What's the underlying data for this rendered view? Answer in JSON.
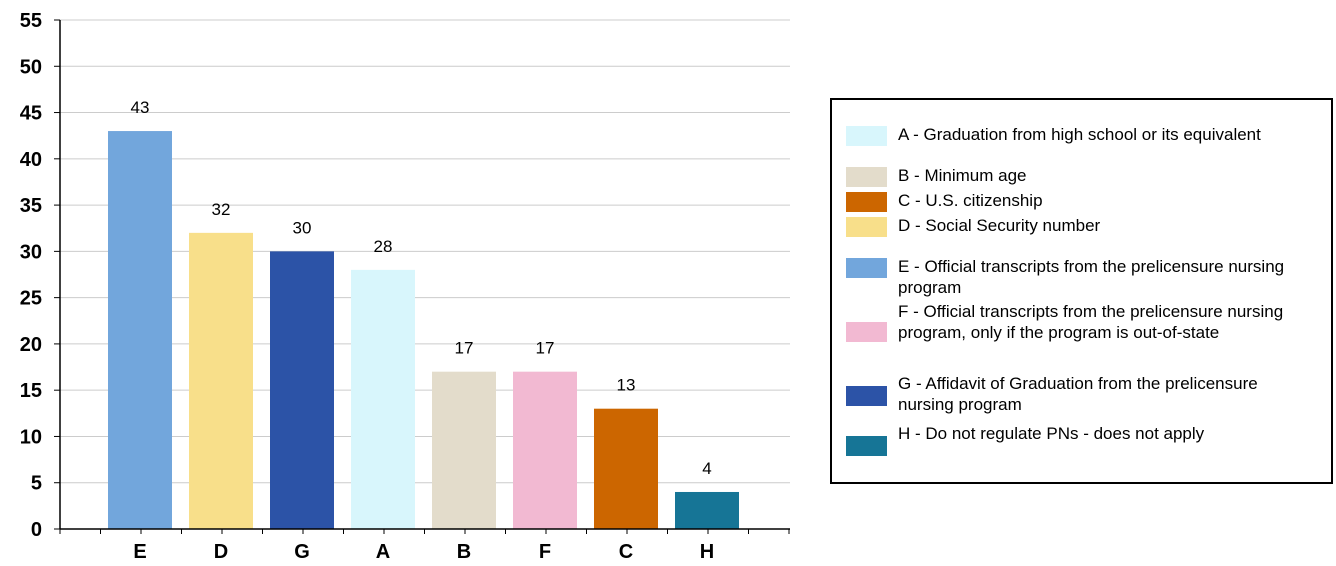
{
  "chart_data": {
    "type": "bar",
    "categories": [
      "E",
      "D",
      "G",
      "A",
      "B",
      "F",
      "C",
      "H"
    ],
    "values": [
      43,
      32,
      30,
      28,
      17,
      17,
      13,
      4
    ],
    "colors": [
      "#72a6dc",
      "#f8df8a",
      "#2c53a7",
      "#d8f6fc",
      "#e3dccb",
      "#f2b9d2",
      "#cc6600",
      "#167596"
    ],
    "ylim": [
      0,
      55
    ],
    "yticks": [
      "0",
      "5",
      "10",
      "15",
      "20",
      "25",
      "30",
      "35",
      "40",
      "45",
      "50",
      "55"
    ],
    "grid": true,
    "legend_position": "right",
    "legend": [
      {
        "label": "A - Graduation from high school or its equivalent",
        "color": "#d8f6fc"
      },
      {
        "label": "B - Minimum age",
        "color": "#e3dccb"
      },
      {
        "label": "C - U.S. citizenship",
        "color": "#cc6600"
      },
      {
        "label": "D - Social Security number",
        "color": "#f8df8a"
      },
      {
        "label": "E - Official transcripts from the prelicensure nursing program",
        "color": "#72a6dc"
      },
      {
        "label": "F - Official transcripts from the prelicensure nursing program, only if the program is out-of-state",
        "color": "#f2b9d2"
      },
      {
        "label": "G - Affidavit of Graduation from the prelicensure nursing program",
        "color": "#2c53a7"
      },
      {
        "label": "H - Do not regulate PNs - does not apply",
        "color": "#167596"
      }
    ]
  }
}
